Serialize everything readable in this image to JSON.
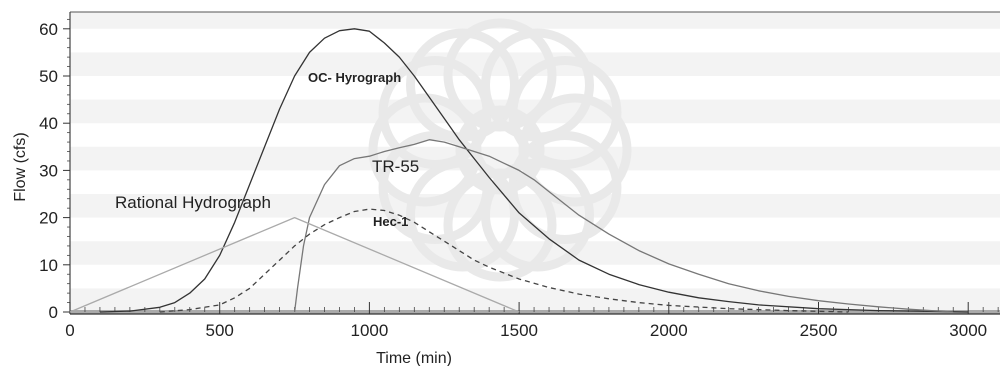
{
  "chart_data": {
    "type": "line",
    "title": "",
    "xlabel": "Time (min)",
    "ylabel": "Flow (cfs)",
    "xlim": [
      0,
      3100
    ],
    "ylim": [
      0,
      64
    ],
    "x_ticks": [
      0,
      500,
      1000,
      1500,
      2000,
      2500,
      3000
    ],
    "x_tick_labels": [
      "0",
      "500",
      "1000",
      "1500",
      "2000",
      "2500",
      "3000"
    ],
    "y_ticks": [
      0,
      10,
      20,
      30,
      40,
      50,
      60
    ],
    "y_tick_labels": [
      "0",
      "10",
      "20",
      "30",
      "40",
      "50",
      "60"
    ],
    "grid": "horizontal bands",
    "series": [
      {
        "name": "OC- Hyrograph",
        "color": "#333333",
        "dash": "",
        "x": [
          100,
          200,
          300,
          350,
          400,
          450,
          500,
          550,
          600,
          650,
          700,
          750,
          800,
          850,
          900,
          950,
          1000,
          1050,
          1100,
          1150,
          1200,
          1250,
          1300,
          1350,
          1400,
          1500,
          1600,
          1700,
          1800,
          1900,
          2000,
          2100,
          2200,
          2300,
          2500,
          2700,
          2900,
          3000
        ],
        "y": [
          0,
          0.2,
          1,
          2,
          4,
          7,
          12,
          19,
          27,
          35,
          43,
          50,
          55,
          58,
          59.6,
          60,
          59.5,
          57,
          54,
          50,
          45.5,
          41,
          36.5,
          32.5,
          28.5,
          21,
          15.5,
          11,
          8,
          5.8,
          4.2,
          3,
          2.2,
          1.5,
          0.7,
          0.3,
          0.1,
          0
        ]
      },
      {
        "name": "TR-55",
        "color": "#777777",
        "dash": "",
        "x": [
          750,
          760,
          780,
          800,
          850,
          900,
          950,
          1000,
          1050,
          1100,
          1150,
          1200,
          1250,
          1300,
          1350,
          1400,
          1450,
          1500,
          1550,
          1600,
          1700,
          1800,
          1900,
          2000,
          2100,
          2200,
          2300,
          2400,
          2500,
          2600,
          2700,
          2800,
          2950
        ],
        "y": [
          0,
          5,
          14,
          20,
          27,
          31,
          32.5,
          33,
          34,
          34.8,
          35.5,
          36.5,
          36,
          35,
          34,
          33,
          31.5,
          30,
          28,
          25.5,
          20.5,
          16.5,
          13,
          10.2,
          8,
          6,
          4.5,
          3.3,
          2.4,
          1.7,
          1.1,
          0.6,
          0
        ]
      },
      {
        "name": "Hec-1",
        "color": "#444444",
        "dash": "5,4",
        "x": [
          300,
          400,
          500,
          550,
          600,
          650,
          700,
          750,
          800,
          850,
          900,
          950,
          1000,
          1050,
          1100,
          1150,
          1200,
          1250,
          1300,
          1350,
          1400,
          1500,
          1600,
          1700,
          1800,
          1900,
          2000,
          2200,
          2400,
          2600
        ],
        "y": [
          0,
          0.5,
          1.5,
          3,
          5,
          8,
          11,
          14,
          16.5,
          18.5,
          20,
          21.3,
          21.8,
          21.5,
          20.5,
          19,
          17,
          15,
          13,
          11,
          9.5,
          7,
          5.2,
          3.8,
          2.8,
          2,
          1.4,
          0.7,
          0.3,
          0
        ]
      },
      {
        "name": "Rational Hydrograph",
        "color": "#aaaaaa",
        "dash": "",
        "x": [
          0,
          750,
          1500
        ],
        "y": [
          0,
          20,
          0
        ]
      }
    ]
  }
}
